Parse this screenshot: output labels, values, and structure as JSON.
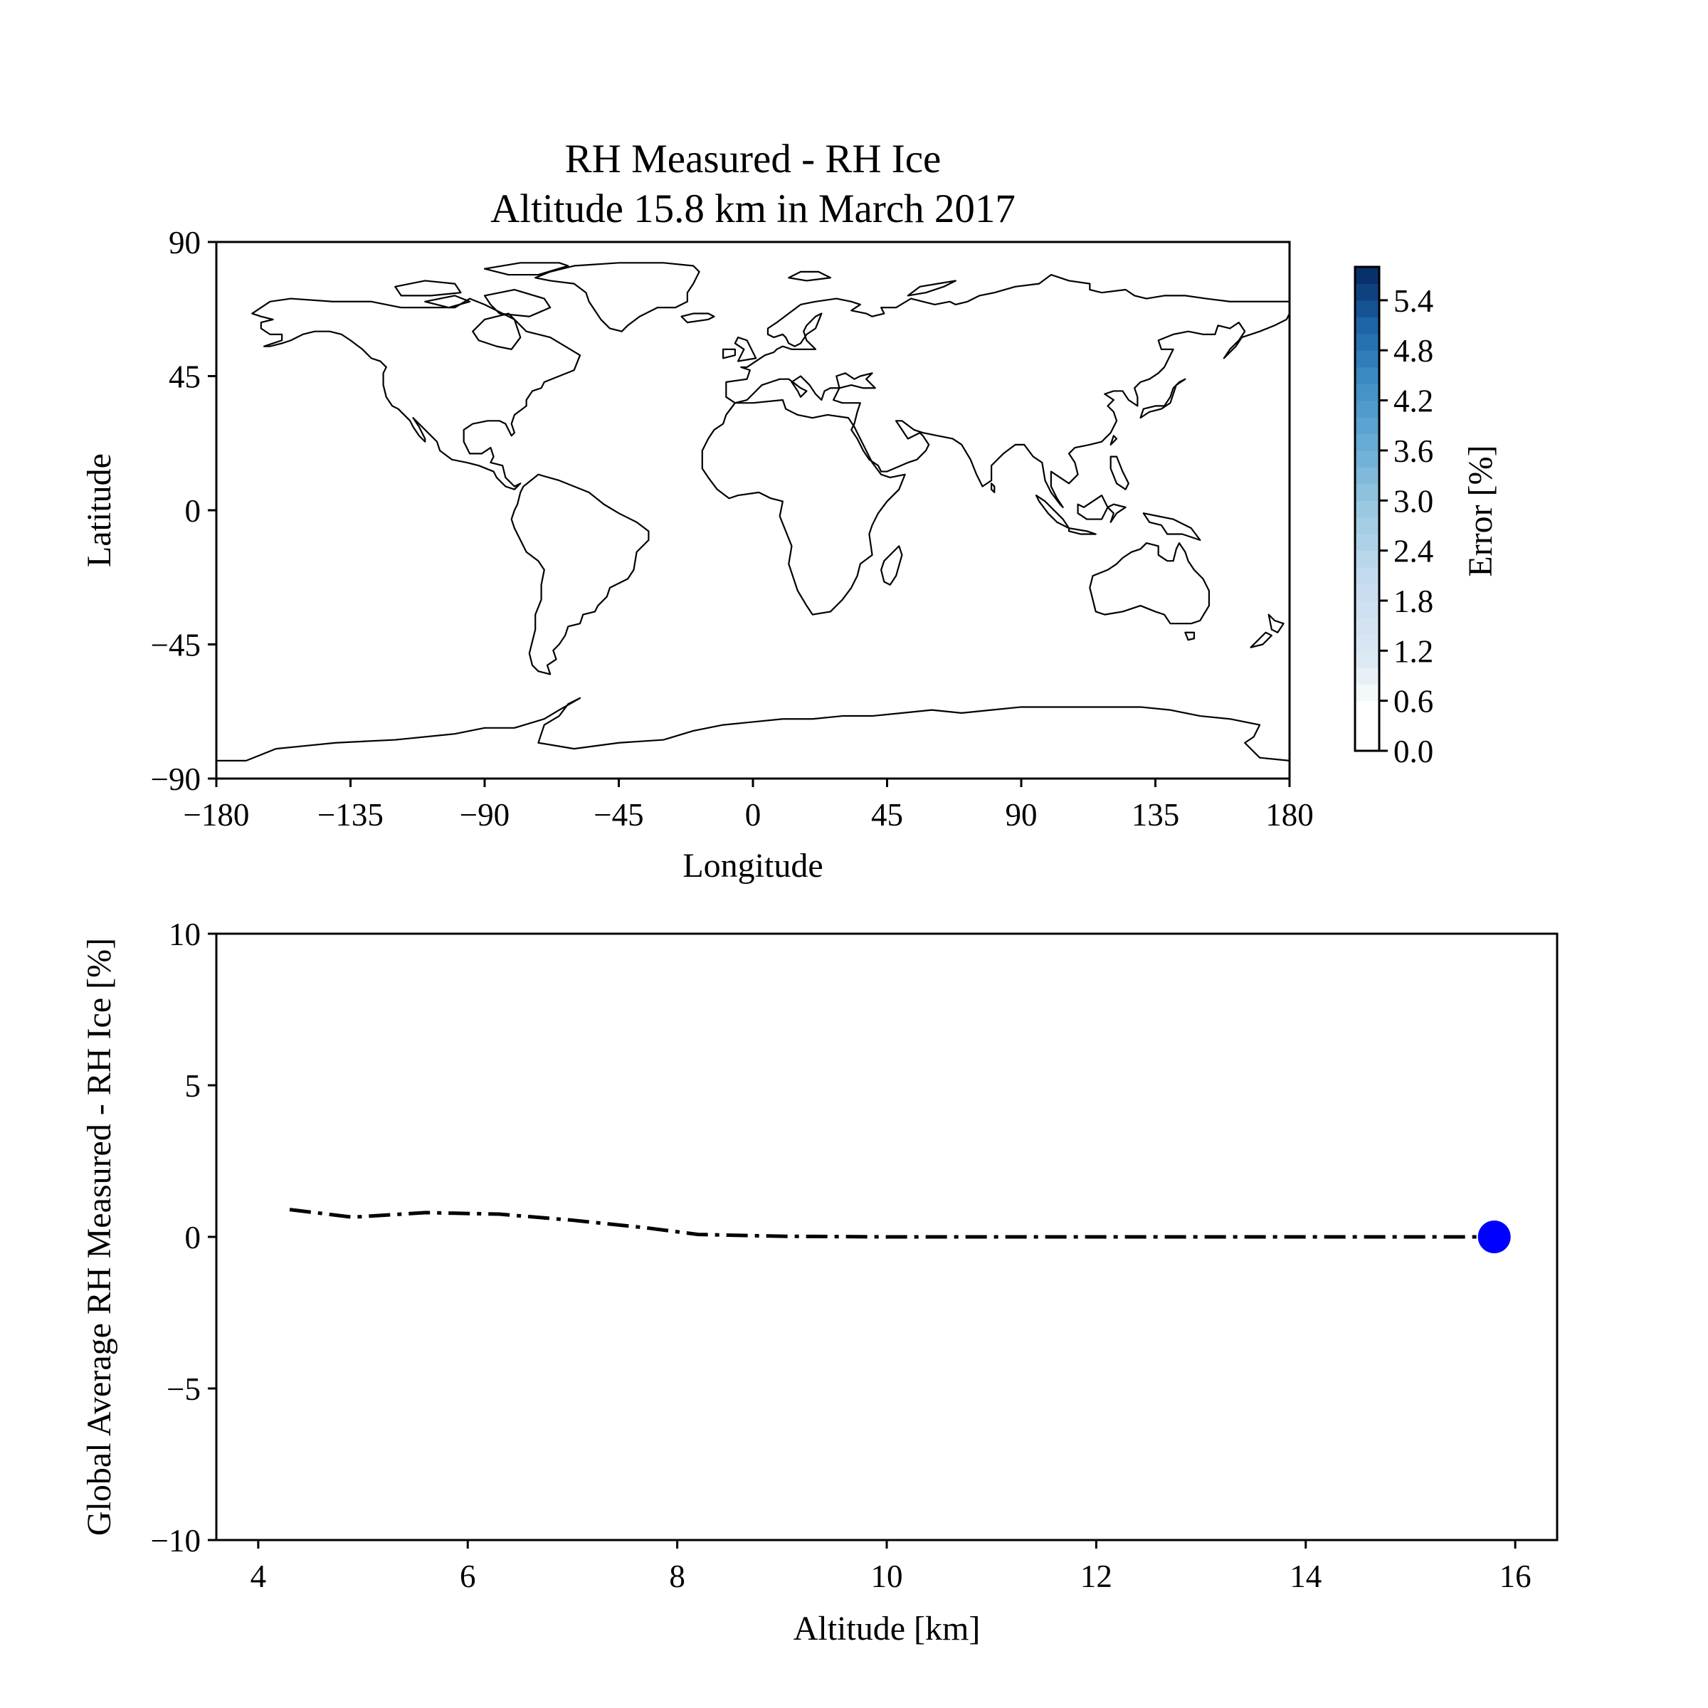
{
  "chart_data": [
    {
      "type": "heatmap",
      "title": "RH Measured - RH Ice",
      "subtitle": "Altitude 15.8 km in March 2017",
      "xlabel": "Longitude",
      "ylabel": "Latitude",
      "xlim": [
        -180,
        180
      ],
      "ylim": [
        -90,
        90
      ],
      "xticks": [
        "−180",
        "−135",
        "−90",
        "−45",
        "0",
        "45",
        "90",
        "135",
        "180"
      ],
      "yticks": [
        "90",
        "45",
        "0",
        "−45",
        "−90"
      ],
      "basemap": "world coastlines",
      "colorbar": {
        "label": "Error [%]",
        "range": [
          0.0,
          5.8
        ],
        "step": 0.2,
        "ticks": [
          "0.0",
          "0.6",
          "1.2",
          "1.8",
          "2.4",
          "3.0",
          "3.6",
          "4.2",
          "4.8",
          "5.4"
        ],
        "colormap": "Blues",
        "color_low": "#ffffff",
        "color_high": "#08306b"
      },
      "values": "all cells below 0.6 (white)"
    },
    {
      "type": "line",
      "xlabel": "Altitude [km]",
      "ylabel": "Global Average RH Measured - RH Ice [%]",
      "xlim": [
        3.6,
        16.4
      ],
      "ylim": [
        -10,
        10
      ],
      "xticks": [
        "4",
        "6",
        "8",
        "10",
        "12",
        "14",
        "16"
      ],
      "yticks": [
        "10",
        "5",
        "0",
        "−5",
        "−10"
      ],
      "line_style": "dash-dot",
      "line_color": "#000000",
      "series": [
        {
          "x": [
            4.3,
            4.9,
            5.6,
            6.3,
            7.0,
            7.7,
            8.2,
            9.0,
            10.0,
            11.0,
            12.0,
            13.0,
            14.0,
            15.0,
            15.8
          ],
          "y": [
            0.9,
            0.65,
            0.8,
            0.75,
            0.55,
            0.3,
            0.08,
            0.02,
            0.0,
            0.0,
            0.0,
            0.0,
            0.0,
            0.0,
            0.0
          ]
        }
      ],
      "marker": {
        "x": 15.8,
        "y": 0.0,
        "color": "#0000ff"
      }
    }
  ]
}
